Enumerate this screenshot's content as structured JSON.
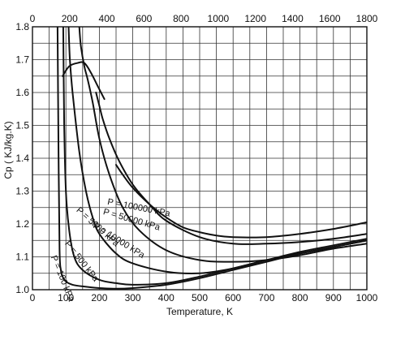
{
  "chart_data": {
    "type": "line",
    "title": "",
    "xlabel": "Temperature, K",
    "ylabel": "Cp ( KJ/kg.K)",
    "xlim": [
      0,
      1000
    ],
    "ylim": [
      1.0,
      1.8
    ],
    "x_top_lim": [
      0,
      1800
    ],
    "x_ticks": [
      "0",
      "100",
      "200",
      "300",
      "400",
      "500",
      "600",
      "700",
      "800",
      "900",
      "1000"
    ],
    "x_top_ticks": [
      "0",
      "200",
      "400",
      "600",
      "800",
      "1000",
      "1200",
      "1400",
      "1600",
      "1800"
    ],
    "y_ticks": [
      "1.0",
      "1.1",
      "1.2",
      "1.3",
      "1.4",
      "1.5",
      "1.6",
      "1.7",
      "1.8"
    ],
    "grid": true,
    "series": [
      {
        "name": "P = 100 kPa",
        "x": [
          75,
          78,
          81,
          85,
          90,
          100,
          120,
          150,
          200,
          250,
          300,
          400,
          500,
          600,
          700,
          800,
          900,
          1000
        ],
        "y": [
          1.8,
          1.42,
          1.12,
          1.06,
          1.04,
          1.025,
          1.015,
          1.01,
          1.005,
          1.003,
          1.005,
          1.015,
          1.035,
          1.06,
          1.085,
          1.11,
          1.13,
          1.15
        ]
      },
      {
        "name": "P = 500 kPa",
        "x": [
          92,
          95,
          100,
          110,
          125,
          150,
          200,
          250,
          300,
          400,
          500,
          600,
          700,
          800,
          900,
          1000
        ],
        "y": [
          1.8,
          1.5,
          1.3,
          1.18,
          1.1,
          1.06,
          1.03,
          1.02,
          1.015,
          1.02,
          1.04,
          1.065,
          1.09,
          1.115,
          1.135,
          1.155
        ]
      },
      {
        "name": "P = 5000 kPa",
        "x": [
          108,
          112,
          120,
          140,
          160,
          180,
          200,
          250,
          300,
          400,
          500,
          600,
          700,
          800,
          900,
          1000
        ],
        "y": [
          1.8,
          1.7,
          1.6,
          1.42,
          1.3,
          1.22,
          1.17,
          1.11,
          1.08,
          1.055,
          1.05,
          1.065,
          1.09,
          1.11,
          1.13,
          1.15
        ]
      },
      {
        "name": "P = 10000 kPa",
        "x": [
          140,
          145,
          155,
          165,
          180,
          200,
          230,
          270,
          320,
          400,
          500,
          600,
          700,
          800,
          900,
          1000
        ],
        "y": [
          1.8,
          1.74,
          1.68,
          1.64,
          1.57,
          1.46,
          1.35,
          1.25,
          1.18,
          1.12,
          1.09,
          1.085,
          1.09,
          1.105,
          1.125,
          1.14
        ]
      },
      {
        "name": "P = 50000 kPa",
        "x": [
          190,
          200,
          210,
          230,
          260,
          300,
          350,
          400,
          500,
          600,
          700,
          800,
          900,
          1000
        ],
        "y": [
          1.6,
          1.56,
          1.52,
          1.46,
          1.39,
          1.32,
          1.26,
          1.21,
          1.16,
          1.14,
          1.14,
          1.145,
          1.155,
          1.17
        ]
      },
      {
        "name": "P = 100000 kPa",
        "x": [
          250,
          270,
          300,
          350,
          400,
          450,
          500,
          550,
          600,
          700,
          800,
          900,
          1000
        ],
        "y": [
          1.38,
          1.35,
          1.31,
          1.26,
          1.22,
          1.19,
          1.175,
          1.165,
          1.16,
          1.16,
          1.17,
          1.185,
          1.205
        ]
      },
      {
        "name": "",
        "x": [
          90,
          110,
          135,
          155,
          175,
          195,
          215
        ],
        "y": [
          1.65,
          1.68,
          1.69,
          1.69,
          1.66,
          1.62,
          1.58
        ]
      }
    ]
  }
}
